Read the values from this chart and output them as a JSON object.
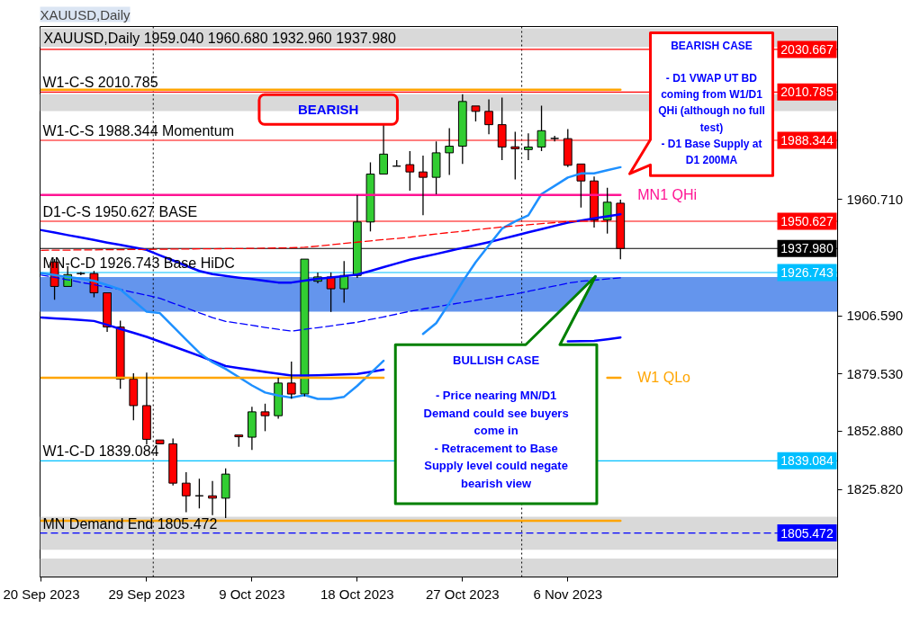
{
  "chart_data": {
    "type": "candlestick",
    "title": "XAUUSD,Daily",
    "subtitle": "XAUUSD,Daily 1959.040 1960.680 1932.960 1937.980",
    "categories": [
      "20 Sep 2023",
      null,
      null,
      null,
      null,
      null,
      null,
      null,
      "29 Sep 2023",
      null,
      null,
      null,
      null,
      null,
      null,
      null,
      "9 Oct 2023",
      null,
      null,
      null,
      null,
      null,
      null,
      null,
      "18 Oct 2023",
      null,
      null,
      null,
      null,
      null,
      null,
      null,
      "27 Oct 2023",
      null,
      null,
      null,
      null,
      null,
      null,
      null,
      "6 Nov 2023",
      null,
      null,
      null,
      null
    ],
    "ylim": [
      1785.0,
      2041.3
    ],
    "yticks": [
      {
        "value": 1960.71,
        "label": "1960.710"
      },
      {
        "value": 1906.59,
        "label": "1906.590"
      },
      {
        "value": 1879.53,
        "label": "1879.530"
      },
      {
        "value": 1852.88,
        "label": "1852.880"
      },
      {
        "value": 1825.82,
        "label": "1825.820"
      }
    ],
    "ohlc": [
      null,
      [
        1931.7,
        1933.0,
        1914.1,
        1920.3
      ],
      [
        1920.3,
        1929.7,
        1920.0,
        1925.8
      ],
      [
        1926.3,
        1927.0,
        1925.5,
        1926.3
      ],
      [
        1926.3,
        1927.5,
        1915.2,
        1917.3
      ],
      [
        1917.3,
        1917.4,
        1899.1,
        1901.4
      ],
      [
        1901.4,
        1904.4,
        1872.6,
        1877.1
      ],
      [
        1877.1,
        1879.9,
        1858.0,
        1864.8
      ],
      [
        1864.8,
        1880.2,
        1846.7,
        1849.1
      ],
      [
        1848.8,
        1849.0,
        1846.8,
        1847.0
      ],
      [
        1847.0,
        1849.5,
        1827.6,
        1828.7
      ],
      [
        1828.7,
        1833.8,
        1815.2,
        1822.8
      ],
      [
        1822.8,
        1830.8,
        1816.9,
        1822.8
      ],
      [
        1822.8,
        1829.7,
        1813.8,
        1821.7
      ],
      [
        1821.7,
        1835.6,
        1812.4,
        1832.9
      ],
      [
        1851.1,
        1851.5,
        1845.6,
        1850.3
      ],
      [
        1850.1,
        1864.3,
        1844.2,
        1861.9
      ],
      [
        1861.9,
        1865.7,
        1852.9,
        1860.1
      ],
      [
        1860.1,
        1877.8,
        1858.7,
        1875.3
      ],
      [
        1875.3,
        1885.3,
        1868.0,
        1870.2
      ],
      [
        1870.2,
        1933.4,
        1869.1,
        1933.0
      ],
      [
        1922.7,
        1926.8,
        1921.7,
        1924.7
      ],
      [
        1924.7,
        1926.8,
        1908.4,
        1919.2
      ],
      [
        1919.2,
        1932.1,
        1912.7,
        1925.4
      ],
      [
        1925.4,
        1962.8,
        1924.2,
        1950.3
      ],
      [
        1950.3,
        1978.1,
        1945.9,
        1972.6
      ],
      [
        1972.6,
        1995.7,
        1972.2,
        1981.9
      ],
      [
        1976.3,
        1979.1,
        1976.3,
        1976.3
      ],
      [
        1977.0,
        1983.3,
        1964.9,
        1973.6
      ],
      [
        1973.6,
        1981.2,
        1953.5,
        1971.1
      ],
      [
        1971.1,
        1987.8,
        1963.2,
        1982.5
      ],
      [
        1982.5,
        1994.0,
        1972.2,
        1985.6
      ],
      [
        1985.6,
        2009.8,
        1977.3,
        2006.4
      ],
      [
        2004.3,
        2004.7,
        1997.1,
        2001.8
      ],
      [
        2001.8,
        2007.4,
        1991.1,
        1995.6
      ],
      [
        1995.6,
        2008.2,
        1979.1,
        1985.2
      ],
      [
        1985.3,
        1992.3,
        1970.1,
        1984.4
      ],
      [
        1984.0,
        1991.6,
        1979.1,
        1985.2
      ],
      [
        1985.2,
        2004.4,
        1983.3,
        1992.8
      ],
      [
        1989.2,
        1990.4,
        1987.8,
        1989.2
      ],
      [
        1989.1,
        1993.6,
        1975.9,
        1976.7
      ],
      [
        1977.3,
        1977.5,
        1957.0,
        1969.4
      ],
      [
        1969.4,
        1971.5,
        1947.7,
        1951.2
      ],
      [
        1951.2,
        1966.2,
        1944.9,
        1959.5
      ],
      [
        1959.04,
        1960.68,
        1932.96,
        1937.98
      ]
    ],
    "colors": [
      null,
      "#ff0000",
      "#32cd32",
      "#000000",
      "#ff0000",
      "#ff0000",
      "#ff0000",
      "#ff0000",
      "#ff0000",
      "#ff0000",
      "#ff0000",
      "#ff0000",
      "#000000",
      "#ff0000",
      "#32cd32",
      "#ff0000",
      "#32cd32",
      "#ff0000",
      "#32cd32",
      "#ff0000",
      "#32cd32",
      "#32cd32",
      "#ff0000",
      "#32cd32",
      "#32cd32",
      "#32cd32",
      "#32cd32",
      "#000000",
      "#ff0000",
      "#ff0000",
      "#32cd32",
      "#32cd32",
      "#32cd32",
      "#ff0000",
      "#ff0000",
      "#ff0000",
      "#ff0000",
      "#32cd32",
      "#32cd32",
      "#000000",
      "#ff0000",
      "#ff0000",
      "#ff0000",
      "#32cd32",
      "#ff0000"
    ],
    "bands": [
      {
        "axis": "y",
        "from": 2031.8,
        "to": 2040.5,
        "color": "#d9d9d9"
      },
      {
        "axis": "y",
        "from": 2001.9,
        "to": 2009.8,
        "color": "#d9d9d9"
      },
      {
        "axis": "y",
        "from": 1908.5,
        "to": 1924.7,
        "color": "#6495ed"
      },
      {
        "axis": "y",
        "from": 1797.7,
        "to": 1813.1,
        "color": "#d9d9d9"
      },
      {
        "axis": "y",
        "from": 1785.0,
        "to": 1793.6,
        "color": "#d9d9d9"
      }
    ],
    "ref_lines": [
      {
        "axis": "y",
        "value": 2030.667,
        "label": "2030.667",
        "color": "#ff0000"
      },
      {
        "axis": "y",
        "value": 2010.785,
        "label": "2010.785",
        "color": "#ff0000"
      },
      {
        "axis": "y",
        "value": 1988.344,
        "label": "1988.344",
        "color": "#ff0000"
      },
      {
        "axis": "y",
        "value": 1950.627,
        "label": "1950.627",
        "color": "#ff0000"
      },
      {
        "axis": "y",
        "value": 1937.98,
        "label": "1937.980",
        "color": "#000000"
      },
      {
        "axis": "y",
        "value": 1926.743,
        "label": "1926.743",
        "color": "#00bfff"
      },
      {
        "axis": "y",
        "value": 1839.084,
        "label": "1839.084",
        "color": "#00bfff"
      },
      {
        "axis": "y",
        "value": 1805.472,
        "label": "1805.472",
        "color": "#0000ff",
        "line_style": "dashed"
      }
    ],
    "series": [
      {
        "type": "line",
        "color": "#0000ff",
        "values": [
          1946.5,
          1945.4,
          1944.2,
          1943.1,
          1941.9,
          1940.7,
          1939.6,
          1938.5,
          1937.3,
          1934.8,
          1932.4,
          1929.9,
          1927.5,
          1926.0,
          1925.2,
          1924.4,
          1923.7,
          1922.9,
          1922.1,
          1922.1,
          1923.0,
          1923.8,
          1924.5,
          1925.1,
          1925.8,
          1927.5,
          1929.3,
          1931.0,
          1932.7,
          1934.1,
          1935.4,
          1936.8,
          1938.2,
          1939.5,
          1940.9,
          1942.4,
          1943.9,
          1945.5,
          1947.0,
          1948.5,
          1950.0,
          1951.0,
          1952.0,
          1952.9,
          1953.9
        ]
      },
      {
        "type": "line",
        "color": "#0000ff",
        "values": [
          1905.8,
          1905.4,
          1905.1,
          1904.7,
          1904.2,
          1902.4,
          1900.5,
          1898.7,
          1896.8,
          1894.6,
          1892.4,
          1890.2,
          1888.0,
          1885.6,
          1883.2,
          1882.3,
          1881.4,
          1880.5,
          1879.6,
          1878.8,
          1878.8,
          1878.9,
          1879.1,
          1879.3,
          1879.5,
          1880.5,
          1881.5,
          null,
          null,
          null,
          null,
          null,
          null,
          null,
          null,
          null,
          null,
          null,
          null,
          null,
          1894.7,
          1894.8,
          1894.9,
          1895.7,
          1896.5
        ]
      },
      {
        "type": "line",
        "color": "#0000ff",
        "line_style": "dashed",
        "values": [
          1925.6,
          1924.5,
          1923.4,
          1922.2,
          1921.1,
          1920.0,
          1918.9,
          1917.5,
          1916.2,
          1914.8,
          1912.5,
          1910.3,
          1908.0,
          1905.8,
          1904.0,
          1903.1,
          1902.2,
          1901.2,
          1900.3,
          1899.5,
          1900.3,
          1901.1,
          1901.9,
          1902.8,
          1903.6,
          1904.9,
          1906.1,
          1907.4,
          1908.7,
          1909.8,
          1910.8,
          1911.8,
          1912.8,
          1913.8,
          1914.8,
          1915.8,
          1916.8,
          1918.0,
          1919.3,
          1920.5,
          1921.8,
          1922.7,
          1923.2,
          1923.8,
          1924.3
        ]
      },
      {
        "type": "line",
        "color": "#1e90ff",
        "values": [
          1926.4,
          1925.6,
          1924.7,
          1923.9,
          1922.9,
          1920.9,
          1918.9,
          1913.7,
          1908.5,
          1907.9,
          1901.7,
          1895.5,
          1889.4,
          1885.0,
          1881.9,
          1878.1,
          1874.2,
          1870.9,
          1869.5,
          1868.5,
          1869.7,
          1867.9,
          1867.9,
          1868.9,
          1874.0,
          1879.8,
          1885.7,
          null,
          null,
          1898.2,
          1903.2,
          1912.6,
          1922.5,
          1931.6,
          1939.4,
          1947.2,
          1950.6,
          1953.4,
          1963.3,
          1967.1,
          1971.0,
          1972.9,
          1972.9,
          1974.4,
          1975.8
        ]
      },
      {
        "type": "line",
        "color": "#ff0000",
        "line_style": "dashed",
        "values": [
          1937.1,
          1937.2,
          1937.2,
          1937.3,
          1937.3,
          1937.4,
          1937.4,
          1937.5,
          1937.5,
          1937.6,
          1937.7,
          1937.7,
          1937.8,
          1937.8,
          1937.9,
          1937.9,
          1938.0,
          1938.1,
          1938.2,
          1938.3,
          1938.5,
          1939.1,
          1939.7,
          1940.3,
          1940.9,
          1941.5,
          1942.1,
          1942.6,
          1943.2,
          1944.0,
          1944.7,
          1945.4,
          1946.0,
          1946.7,
          1947.3,
          1948.0,
          1948.5,
          1949.0,
          1949.5,
          1950.0,
          1950.5,
          1950.7,
          1950.7,
          1950.6,
          null
        ]
      },
      {
        "type": "line",
        "color": "#ffa500",
        "values": [
          2011.9,
          2011.9,
          2011.9,
          2011.9,
          2011.9,
          2011.9,
          2011.9,
          2011.9,
          2011.9,
          2011.9,
          2011.9,
          2011.9,
          2011.9,
          2011.9,
          2011.9,
          2011.9,
          2011.9,
          2011.9,
          2011.9,
          2011.9,
          2011.9,
          2011.9,
          2011.9,
          2011.9,
          2011.9,
          2011.9,
          2011.9,
          2011.9,
          2011.9,
          2011.9,
          2011.9,
          2011.9,
          2011.9,
          2011.9,
          2011.9,
          2011.9,
          2011.9,
          2011.9,
          2011.9,
          2011.9,
          2011.9,
          2011.9,
          2011.9,
          2011.9,
          2011.9
        ]
      },
      {
        "type": "line",
        "name": "MN1 QHi",
        "color": "#ff1493",
        "values": [
          1962.9,
          1962.9,
          1962.9,
          1962.9,
          1962.9,
          1962.9,
          1962.9,
          1962.9,
          1962.9,
          1962.9,
          1962.9,
          1962.9,
          1962.9,
          1962.9,
          1962.9,
          1962.9,
          1962.9,
          1962.9,
          1962.9,
          1962.9,
          1962.9,
          1962.9,
          1962.9,
          1962.9,
          1962.9,
          1962.9,
          1962.9,
          1962.9,
          1962.9,
          1962.9,
          1962.9,
          1962.9,
          1962.9,
          1962.9,
          1962.9,
          1962.9,
          1962.9,
          1962.9,
          1962.9,
          1962.9,
          1962.9,
          1962.9,
          1962.9,
          1962.9,
          1962.9
        ]
      },
      {
        "type": "line",
        "name": "W1 QLo",
        "color": "#ffa500",
        "values": [
          1877.8,
          1877.8,
          1877.8,
          1877.8,
          1877.8,
          1877.8,
          1877.8,
          1877.8,
          1877.8,
          1877.8,
          1877.8,
          1877.8,
          1877.8,
          1877.8,
          1877.8,
          1877.8,
          1877.8,
          1877.8,
          1877.8,
          1877.8,
          1877.8,
          1877.8,
          1877.8,
          1877.8,
          1877.8,
          1877.8,
          1877.8,
          null,
          null,
          null,
          null,
          null,
          null,
          null,
          null,
          null,
          null,
          null,
          null,
          null,
          null,
          null,
          null,
          1877.8,
          1877.8
        ]
      },
      {
        "type": "line",
        "color": "#ffa500",
        "values": [
          1811.2,
          1811.2,
          1811.2,
          1811.2,
          1811.2,
          1811.2,
          1811.2,
          1811.2,
          1811.2,
          1811.2,
          1811.2,
          1811.2,
          1811.2,
          1811.2,
          1811.2,
          1811.2,
          1811.2,
          1811.2,
          1811.2,
          1811.2,
          1811.2,
          1811.2,
          1811.2,
          1811.2,
          1811.2,
          1811.2,
          1811.2,
          1811.2,
          1811.2,
          1811.2,
          1811.2,
          1811.2,
          1811.2,
          1811.2,
          1811.2,
          1811.2,
          1811.2,
          1811.2,
          1811.2,
          1811.2,
          1811.2,
          1811.2,
          1811.2,
          1811.2,
          1811.2
        ]
      }
    ],
    "annotations": [
      {
        "text": "W1-C-S 2010.785",
        "y": 2010.785
      },
      {
        "text": "W1-C-S 1988.344 Momentum",
        "y": 1988.344
      },
      {
        "text": "D1-C-S 1950.627 BASE",
        "y": 1950.627
      },
      {
        "text": "MN-C-D 1926.743 Base HiDC",
        "y": 1926.743
      },
      {
        "text": "W1-C-D 1839.084",
        "y": 1839.084
      },
      {
        "text": "MN Demand End 1805.472",
        "y": 1805.472
      },
      "BEARISH",
      "BEARISH CASE\n\n- D1 VWAP UT BD\ncoming from W1/D1\nQHi (although no full\ntest)\n- D1 Base Supply at\nD1 200MA",
      "BULLISH CASE\n\n- Price nearing MN/D1\nDemand could see buyers\ncome in\n- Retracement to Base\nSupply level could negate\nbearish view"
    ]
  }
}
